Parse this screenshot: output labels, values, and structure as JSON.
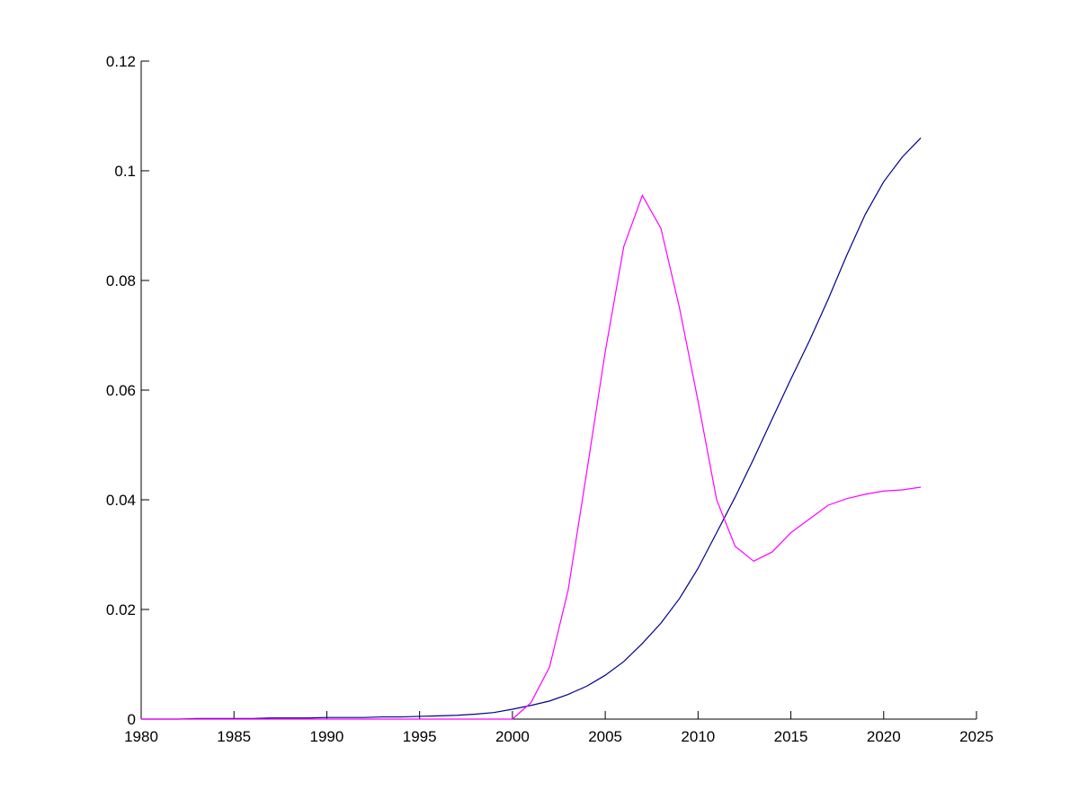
{
  "chart_data": {
    "type": "line",
    "x": [
      1980,
      1981,
      1982,
      1983,
      1984,
      1985,
      1986,
      1987,
      1988,
      1989,
      1990,
      1991,
      1992,
      1993,
      1994,
      1995,
      1996,
      1997,
      1998,
      1999,
      2000,
      2001,
      2002,
      2003,
      2004,
      2005,
      2006,
      2007,
      2008,
      2009,
      2010,
      2011,
      2012,
      2013,
      2014,
      2015,
      2016,
      2017,
      2018,
      2019,
      2020,
      2021,
      2022
    ],
    "series": [
      {
        "color": "#00008b",
        "values": [
          0,
          0,
          0,
          0.0001,
          0.0001,
          0.0001,
          0.0001,
          0.0002,
          0.0002,
          0.0002,
          0.0003,
          0.0003,
          0.0003,
          0.0004,
          0.0004,
          0.0005,
          0.0006,
          0.0007,
          0.0009,
          0.0012,
          0.0018,
          0.0025,
          0.0033,
          0.0045,
          0.006,
          0.008,
          0.0105,
          0.0138,
          0.0175,
          0.022,
          0.0275,
          0.034,
          0.0405,
          0.0475,
          0.0548,
          0.062,
          0.069,
          0.0765,
          0.0845,
          0.092,
          0.098,
          0.1025,
          0.106
        ]
      },
      {
        "color": "#ff00ff",
        "values": [
          0,
          0,
          0,
          0,
          0,
          0,
          0,
          0,
          0,
          0,
          0,
          0,
          0,
          0,
          0,
          0,
          0,
          0,
          0,
          0,
          0,
          0.003,
          0.0095,
          0.0235,
          0.045,
          0.067,
          0.0862,
          0.0955,
          0.0895,
          0.075,
          0.058,
          0.04,
          0.0315,
          0.0288,
          0.0305,
          0.034,
          0.0365,
          0.039,
          0.0402,
          0.041,
          0.0416,
          0.0418,
          0.0423
        ]
      }
    ],
    "xlim": [
      1980,
      2025
    ],
    "xticks": [
      1980,
      1985,
      1990,
      1995,
      2000,
      2005,
      2010,
      2015,
      2020,
      2025
    ],
    "ylim": [
      0,
      0.12
    ],
    "yticks": [
      0,
      0.02,
      0.04,
      0.06,
      0.08,
      0.1,
      0.12
    ]
  }
}
